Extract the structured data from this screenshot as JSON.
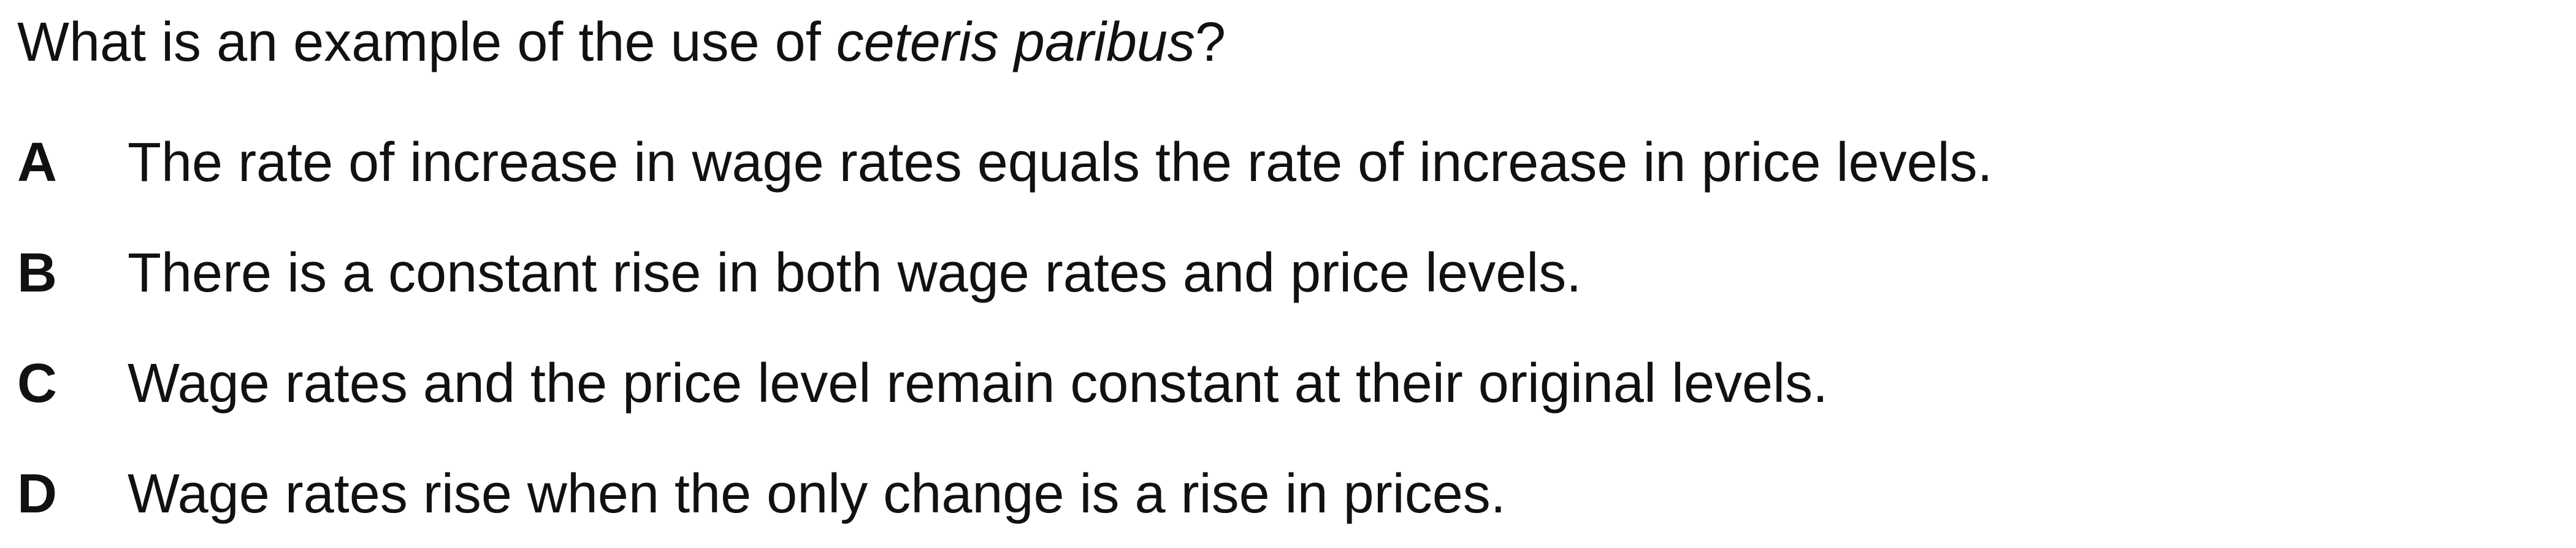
{
  "question": {
    "prefix": "What is an example of the use of ",
    "emphasis": "ceteris paribus",
    "suffix": "?"
  },
  "options": [
    {
      "letter": "A",
      "text": "The rate of increase in wage rates equals the rate of increase in price levels."
    },
    {
      "letter": "B",
      "text": "There is a constant rise in both wage rates and price levels."
    },
    {
      "letter": "C",
      "text": "Wage rates and the price level remain constant at their original levels."
    },
    {
      "letter": "D",
      "text": "Wage rates rise when the only change is a rise in prices."
    }
  ]
}
